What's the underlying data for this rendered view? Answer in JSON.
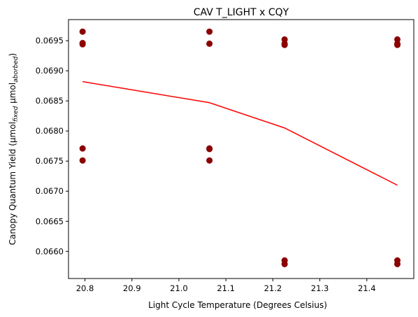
{
  "chart_data": {
    "type": "scatter",
    "title": "CAV T_LIGHT x CQY",
    "xlabel": "Light Cycle Temperature (Degrees Celsius)",
    "ylabel": {
      "main": "Canopy Quantum Yield (μmol",
      "sub1": "fixed",
      "mid": " μmol",
      "sub2": "aborbed",
      "end": ")"
    },
    "xlim": [
      20.765,
      21.5
    ],
    "ylim": [
      0.06555,
      0.06985
    ],
    "x_ticks": [
      20.8,
      20.9,
      21.0,
      21.1,
      21.2,
      21.3,
      21.4
    ],
    "y_ticks": [
      0.066,
      0.0665,
      0.067,
      0.0675,
      0.068,
      0.0685,
      0.069,
      0.0695
    ],
    "x_tick_labels": [
      "20.8",
      "20.9",
      "21.0",
      "21.1",
      "21.2",
      "21.3",
      "21.4"
    ],
    "y_tick_labels": [
      "0.0660",
      "0.0665",
      "0.0670",
      "0.0675",
      "0.0680",
      "0.0685",
      "0.0690",
      "0.0695"
    ],
    "series": [
      {
        "kind": "scatter",
        "color": "#8b0000",
        "points": [
          [
            20.795,
            0.06965
          ],
          [
            20.795,
            0.06946
          ],
          [
            20.795,
            0.06944
          ],
          [
            20.795,
            0.06771
          ],
          [
            20.795,
            0.06751
          ],
          [
            21.065,
            0.06965
          ],
          [
            21.065,
            0.06945
          ],
          [
            21.065,
            0.06771
          ],
          [
            21.065,
            0.0677
          ],
          [
            21.065,
            0.06751
          ],
          [
            21.225,
            0.06952
          ],
          [
            21.225,
            0.06945
          ],
          [
            21.225,
            0.06943
          ],
          [
            21.225,
            0.06585
          ],
          [
            21.225,
            0.06579
          ],
          [
            21.465,
            0.06952
          ],
          [
            21.465,
            0.06945
          ],
          [
            21.465,
            0.06943
          ],
          [
            21.465,
            0.06585
          ],
          [
            21.465,
            0.06579
          ]
        ]
      },
      {
        "kind": "line",
        "color": "#ff0000",
        "points": [
          [
            20.795,
            0.06882
          ],
          [
            21.065,
            0.06847
          ],
          [
            21.225,
            0.06805
          ],
          [
            21.465,
            0.0671
          ]
        ]
      }
    ],
    "grid": false,
    "legend": "none"
  }
}
